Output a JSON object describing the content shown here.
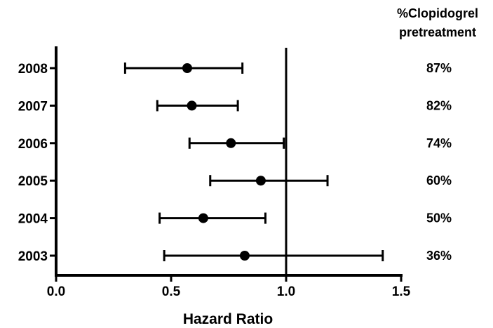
{
  "chart_data": {
    "type": "forest",
    "title": "",
    "xlabel": "Hazard Ratio",
    "xlim": [
      0.0,
      1.5
    ],
    "xticks": [
      0.0,
      0.5,
      1.0,
      1.5
    ],
    "xtick_labels": [
      "0.0",
      "0.5",
      "1.0",
      "1.5"
    ],
    "reference_line": 1.0,
    "grid": false,
    "right_column_header": [
      "%Clopidogrel",
      "pretreatment"
    ],
    "rows": [
      {
        "year": "2008",
        "hr": 0.57,
        "ci_low": 0.3,
        "ci_high": 0.81,
        "pretreatment": "87%"
      },
      {
        "year": "2007",
        "hr": 0.59,
        "ci_low": 0.44,
        "ci_high": 0.79,
        "pretreatment": "82%"
      },
      {
        "year": "2006",
        "hr": 0.76,
        "ci_low": 0.58,
        "ci_high": 0.99,
        "pretreatment": "74%"
      },
      {
        "year": "2005",
        "hr": 0.89,
        "ci_low": 0.67,
        "ci_high": 1.18,
        "pretreatment": "60%"
      },
      {
        "year": "2004",
        "hr": 0.64,
        "ci_low": 0.45,
        "ci_high": 0.91,
        "pretreatment": "50%"
      },
      {
        "year": "2003",
        "hr": 0.82,
        "ci_low": 0.47,
        "ci_high": 1.42,
        "pretreatment": "36%"
      }
    ]
  }
}
